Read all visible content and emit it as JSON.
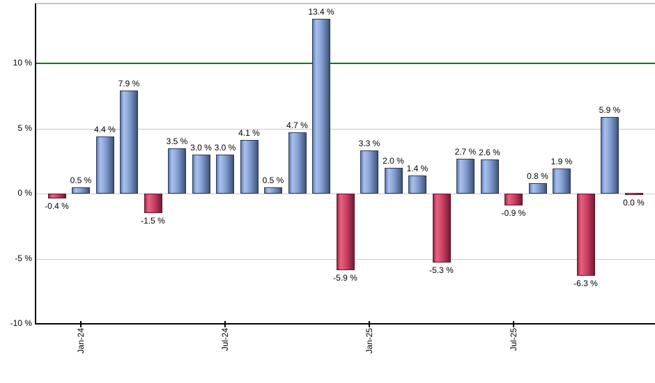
{
  "chart_data": {
    "type": "bar",
    "values": [
      -0.4,
      0.5,
      4.4,
      7.9,
      -1.5,
      3.5,
      3.0,
      3.0,
      4.1,
      0.5,
      4.7,
      13.4,
      -5.9,
      3.3,
      2.0,
      1.4,
      -5.3,
      2.7,
      2.6,
      -0.9,
      0.8,
      1.9,
      -6.3,
      5.9,
      0.0
    ],
    "bar_labels": [
      "-0.4 %",
      "0.5 %",
      "4.4 %",
      "7.9 %",
      "-1.5 %",
      "3.5 %",
      "3.0 %",
      "3.0 %",
      "4.1 %",
      "0.5 %",
      "4.7 %",
      "13.4 %",
      "-5.9 %",
      "3.3 %",
      "2.0 %",
      "1.4 %",
      "-5.3 %",
      "2.7 %",
      "2.6 %",
      "-0.9 %",
      "0.8 %",
      "1.9 %",
      "-6.3 %",
      "5.9 %",
      "0.0 %"
    ],
    "x_ticks": [
      {
        "index": 1,
        "label": "Jan-24"
      },
      {
        "index": 7,
        "label": "Jul-24"
      },
      {
        "index": 13,
        "label": "Jan-25"
      },
      {
        "index": 19,
        "label": "Jul-25"
      }
    ],
    "y_ticks": [
      {
        "value": -10,
        "label": "-10 %"
      },
      {
        "value": -5,
        "label": "-5 %"
      },
      {
        "value": 0,
        "label": "0 %"
      },
      {
        "value": 5,
        "label": "5 %"
      },
      {
        "value": 10,
        "label": "10 %"
      }
    ],
    "ylim": [
      -10,
      14.6
    ],
    "reference_line": {
      "value": 10,
      "color": "#008000"
    },
    "grid": true,
    "legend": "none",
    "title": "",
    "xlabel": "",
    "ylabel": "",
    "colors": {
      "positive_bar": "#8caade",
      "negative_bar": "#cf4668",
      "gridline": "#c9c9c9",
      "reference_line": "#008000",
      "axis": "#000000",
      "top_border": "#c4c4c4",
      "background": "#ffffff"
    }
  }
}
